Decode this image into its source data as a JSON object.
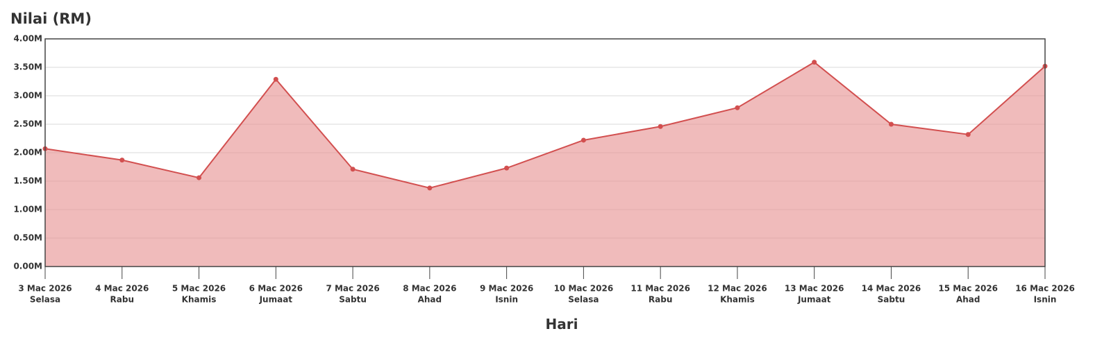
{
  "chart_data": {
    "type": "area",
    "title": "Nilai (RM)",
    "x_label": "Hari",
    "categories": [
      "3 Mac 2026",
      "4 Mac 2026",
      "5 Mac 2026",
      "6 Mac 2026",
      "7 Mac 2026",
      "8 Mac 2026",
      "9 Mac 2026",
      "10 Mac 2026",
      "11 Mac 2026",
      "12 Mac 2026",
      "13 Mac 2026",
      "14 Mac 2026",
      "15 Mac 2026",
      "16 Mac 2026"
    ],
    "category_days": [
      "Selasa",
      "Rabu",
      "Khamis",
      "Jumaat",
      "Sabtu",
      "Ahad",
      "Isnin",
      "Selasa",
      "Rabu",
      "Khamis",
      "Jumaat",
      "Sabtu",
      "Ahad",
      "Isnin"
    ],
    "values": [
      2.07,
      1.87,
      1.56,
      3.29,
      1.71,
      1.38,
      1.73,
      2.22,
      2.46,
      2.79,
      3.59,
      2.5,
      2.32,
      3.52
    ],
    "color": "#d24f4f",
    "fill_color": "#e89696",
    "ylim": [
      0,
      4
    ],
    "yticks": [
      {
        "value": 0,
        "label": "0.00M"
      },
      {
        "value": 0.5,
        "label": "0.50M"
      },
      {
        "value": 1,
        "label": "1.00M"
      },
      {
        "value": 1.5,
        "label": "1.50M"
      },
      {
        "value": 2,
        "label": "2.00M"
      },
      {
        "value": 2.5,
        "label": "2.50M"
      },
      {
        "value": 3,
        "label": "3.00M"
      },
      {
        "value": 3.5,
        "label": "3.50M"
      },
      {
        "value": 4,
        "label": "4.00M"
      }
    ],
    "grid": true
  }
}
